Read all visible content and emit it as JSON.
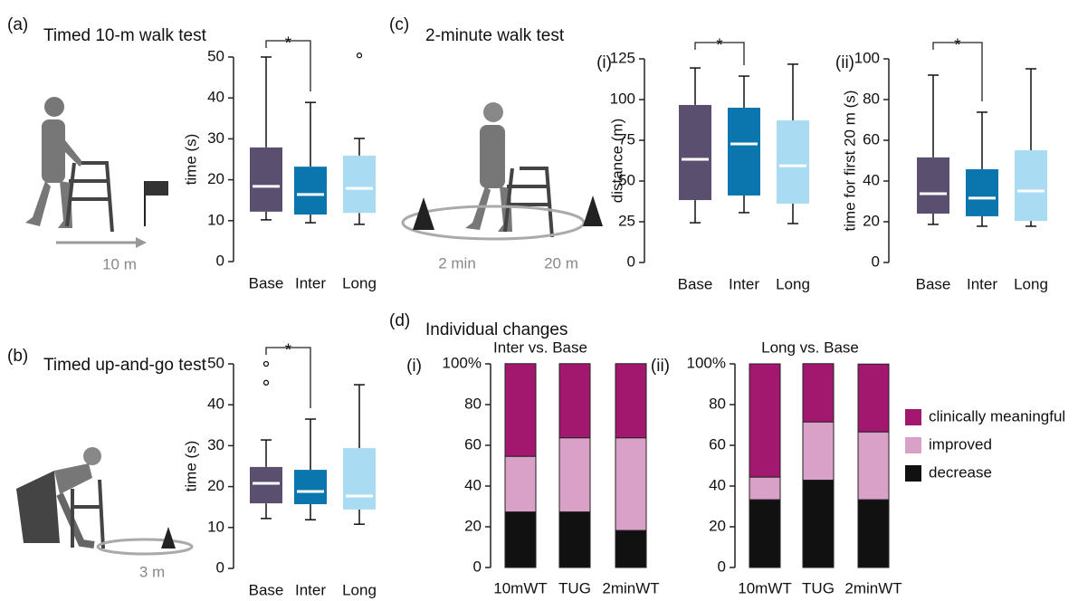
{
  "chart_data": [
    {
      "type": "box",
      "panel": "(a)",
      "title": "Timed 10-m walk test",
      "annotations": [
        "10 m"
      ],
      "subplots": [
        {
          "ylabel": "time (s)",
          "ylim": [
            0,
            50
          ],
          "yticks": [
            0,
            10,
            20,
            30,
            40,
            50
          ],
          "categories": [
            "Base",
            "Inter",
            "Long"
          ],
          "colors": [
            "#5b4f70",
            "#0b76ad",
            "#a9dbf3"
          ],
          "boxes": [
            {
              "low": 10.2,
              "q1": 12.2,
              "median": 18.4,
              "q3": 27.9,
              "high": 50,
              "outliers": []
            },
            {
              "low": 9.5,
              "q1": 11.5,
              "median": 16.4,
              "q3": 23.2,
              "high": 38.9,
              "outliers": []
            },
            {
              "low": 9.1,
              "q1": 11.9,
              "median": 17.9,
              "q3": 25.9,
              "high": 30.1,
              "outliers": [
                50.4
              ]
            }
          ],
          "significance": {
            "pair": [
              0,
              1
            ],
            "label": "*"
          }
        }
      ]
    },
    {
      "type": "box",
      "panel": "(b)",
      "title": "Timed up-and-go test",
      "annotations": [
        "3 m"
      ],
      "subplots": [
        {
          "ylabel": "time (s)",
          "ylim": [
            0,
            50
          ],
          "yticks": [
            0,
            10,
            20,
            30,
            40,
            50
          ],
          "categories": [
            "Base",
            "Inter",
            "Long"
          ],
          "colors": [
            "#5b4f70",
            "#0b76ad",
            "#a9dbf3"
          ],
          "boxes": [
            {
              "low": 12.2,
              "q1": 15.9,
              "median": 20.8,
              "q3": 24.8,
              "high": 31.4,
              "outliers": [
                45.4,
                50
              ]
            },
            {
              "low": 11.9,
              "q1": 15.7,
              "median": 18.8,
              "q3": 24.1,
              "high": 36.5,
              "outliers": []
            },
            {
              "low": 10.8,
              "q1": 14.4,
              "median": 17.7,
              "q3": 29.4,
              "high": 44.9,
              "outliers": []
            }
          ],
          "significance": {
            "pair": [
              0,
              1
            ],
            "label": "*"
          }
        }
      ]
    },
    {
      "type": "box",
      "panel": "(c)",
      "title": "2-minute walk test",
      "annotations": [
        "2 min",
        "20 m"
      ],
      "subplots": [
        {
          "label": "(i)",
          "ylabel": "distance (m)",
          "ylim": [
            0,
            125
          ],
          "yticks": [
            0,
            25,
            50,
            75,
            100,
            125
          ],
          "categories": [
            "Base",
            "Inter",
            "Long"
          ],
          "colors": [
            "#5b4f70",
            "#0b76ad",
            "#a9dbf3"
          ],
          "boxes": [
            {
              "low": 24.4,
              "q1": 38.3,
              "median": 63.3,
              "q3": 96.7,
              "high": 119.4,
              "outliers": []
            },
            {
              "low": 30.6,
              "q1": 41.1,
              "median": 72.8,
              "q3": 95,
              "high": 114.4,
              "outliers": []
            },
            {
              "low": 23.9,
              "q1": 36.1,
              "median": 59.4,
              "q3": 87.2,
              "high": 121.7,
              "outliers": []
            }
          ],
          "significance": {
            "pair": [
              0,
              1
            ],
            "label": "*"
          }
        },
        {
          "label": "(ii)",
          "ylabel": "time for first 20 m (s)",
          "ylim": [
            0,
            100
          ],
          "yticks": [
            0,
            20,
            40,
            60,
            80,
            100
          ],
          "categories": [
            "Base",
            "Inter",
            "Long"
          ],
          "colors": [
            "#5b4f70",
            "#0b76ad",
            "#a9dbf3"
          ],
          "boxes": [
            {
              "low": 18.7,
              "q1": 24,
              "median": 33.8,
              "q3": 51.6,
              "high": 92,
              "outliers": []
            },
            {
              "low": 17.8,
              "q1": 22.7,
              "median": 31.6,
              "q3": 45.8,
              "high": 73.8,
              "outliers": []
            },
            {
              "low": 17.8,
              "q1": 20.4,
              "median": 35.1,
              "q3": 55.1,
              "high": 95.1,
              "outliers": []
            }
          ],
          "significance": {
            "pair": [
              0,
              1
            ],
            "label": "*"
          }
        }
      ]
    },
    {
      "type": "stacked_bar",
      "panel": "(d)",
      "title": "Individual changes",
      "categories": [
        "10mWT",
        "TUG",
        "2minWT"
      ],
      "ylim": [
        0,
        100
      ],
      "yticks": [
        0,
        20,
        40,
        60,
        80,
        {
          "value": 100,
          "label": "100%"
        }
      ],
      "series": [
        {
          "name": "decrease",
          "color": "#111111"
        },
        {
          "name": "improved",
          "color": "#d9a0c8"
        },
        {
          "name": "clinically meaningful",
          "color": "#a3186f"
        }
      ],
      "subplots": [
        {
          "label": "(i)",
          "title": "Inter vs. Base",
          "values": [
            [
              27.3,
              27.3,
              18.2
            ],
            [
              27.3,
              36.4,
              45.5
            ],
            [
              45.5,
              36.4,
              36.4
            ]
          ]
        },
        {
          "label": "(ii)",
          "title": "Long vs. Base",
          "values": [
            [
              33.3,
              42.9,
              33.3
            ],
            [
              11.1,
              28.6,
              33.3
            ],
            [
              55.6,
              28.6,
              33.3
            ]
          ]
        }
      ]
    }
  ]
}
